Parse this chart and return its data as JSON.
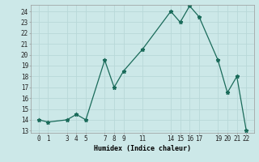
{
  "x": [
    0,
    1,
    3,
    4,
    5,
    7,
    8,
    9,
    11,
    14,
    15,
    16,
    17,
    19,
    20,
    21,
    22
  ],
  "y": [
    14,
    13.8,
    14,
    14.5,
    14,
    19.5,
    17,
    18.5,
    20.5,
    24,
    23,
    24.5,
    23.5,
    19.5,
    16.5,
    18,
    13
  ],
  "xlabel": "Humidex (Indice chaleur)",
  "xticks": [
    0,
    1,
    3,
    4,
    5,
    7,
    8,
    9,
    11,
    14,
    15,
    16,
    17,
    19,
    20,
    21,
    22
  ],
  "yticks": [
    13,
    14,
    15,
    16,
    17,
    18,
    19,
    20,
    21,
    22,
    23,
    24
  ],
  "ylim": [
    12.8,
    24.6
  ],
  "xlim": [
    -0.8,
    22.8
  ],
  "line_color": "#1a6b5a",
  "bg_color": "#cce8e8",
  "grid_color": "#b8d8d8",
  "xlabel_fontsize": 6.0,
  "tick_fontsize": 5.5,
  "marker": "*",
  "marker_size": 3.5
}
